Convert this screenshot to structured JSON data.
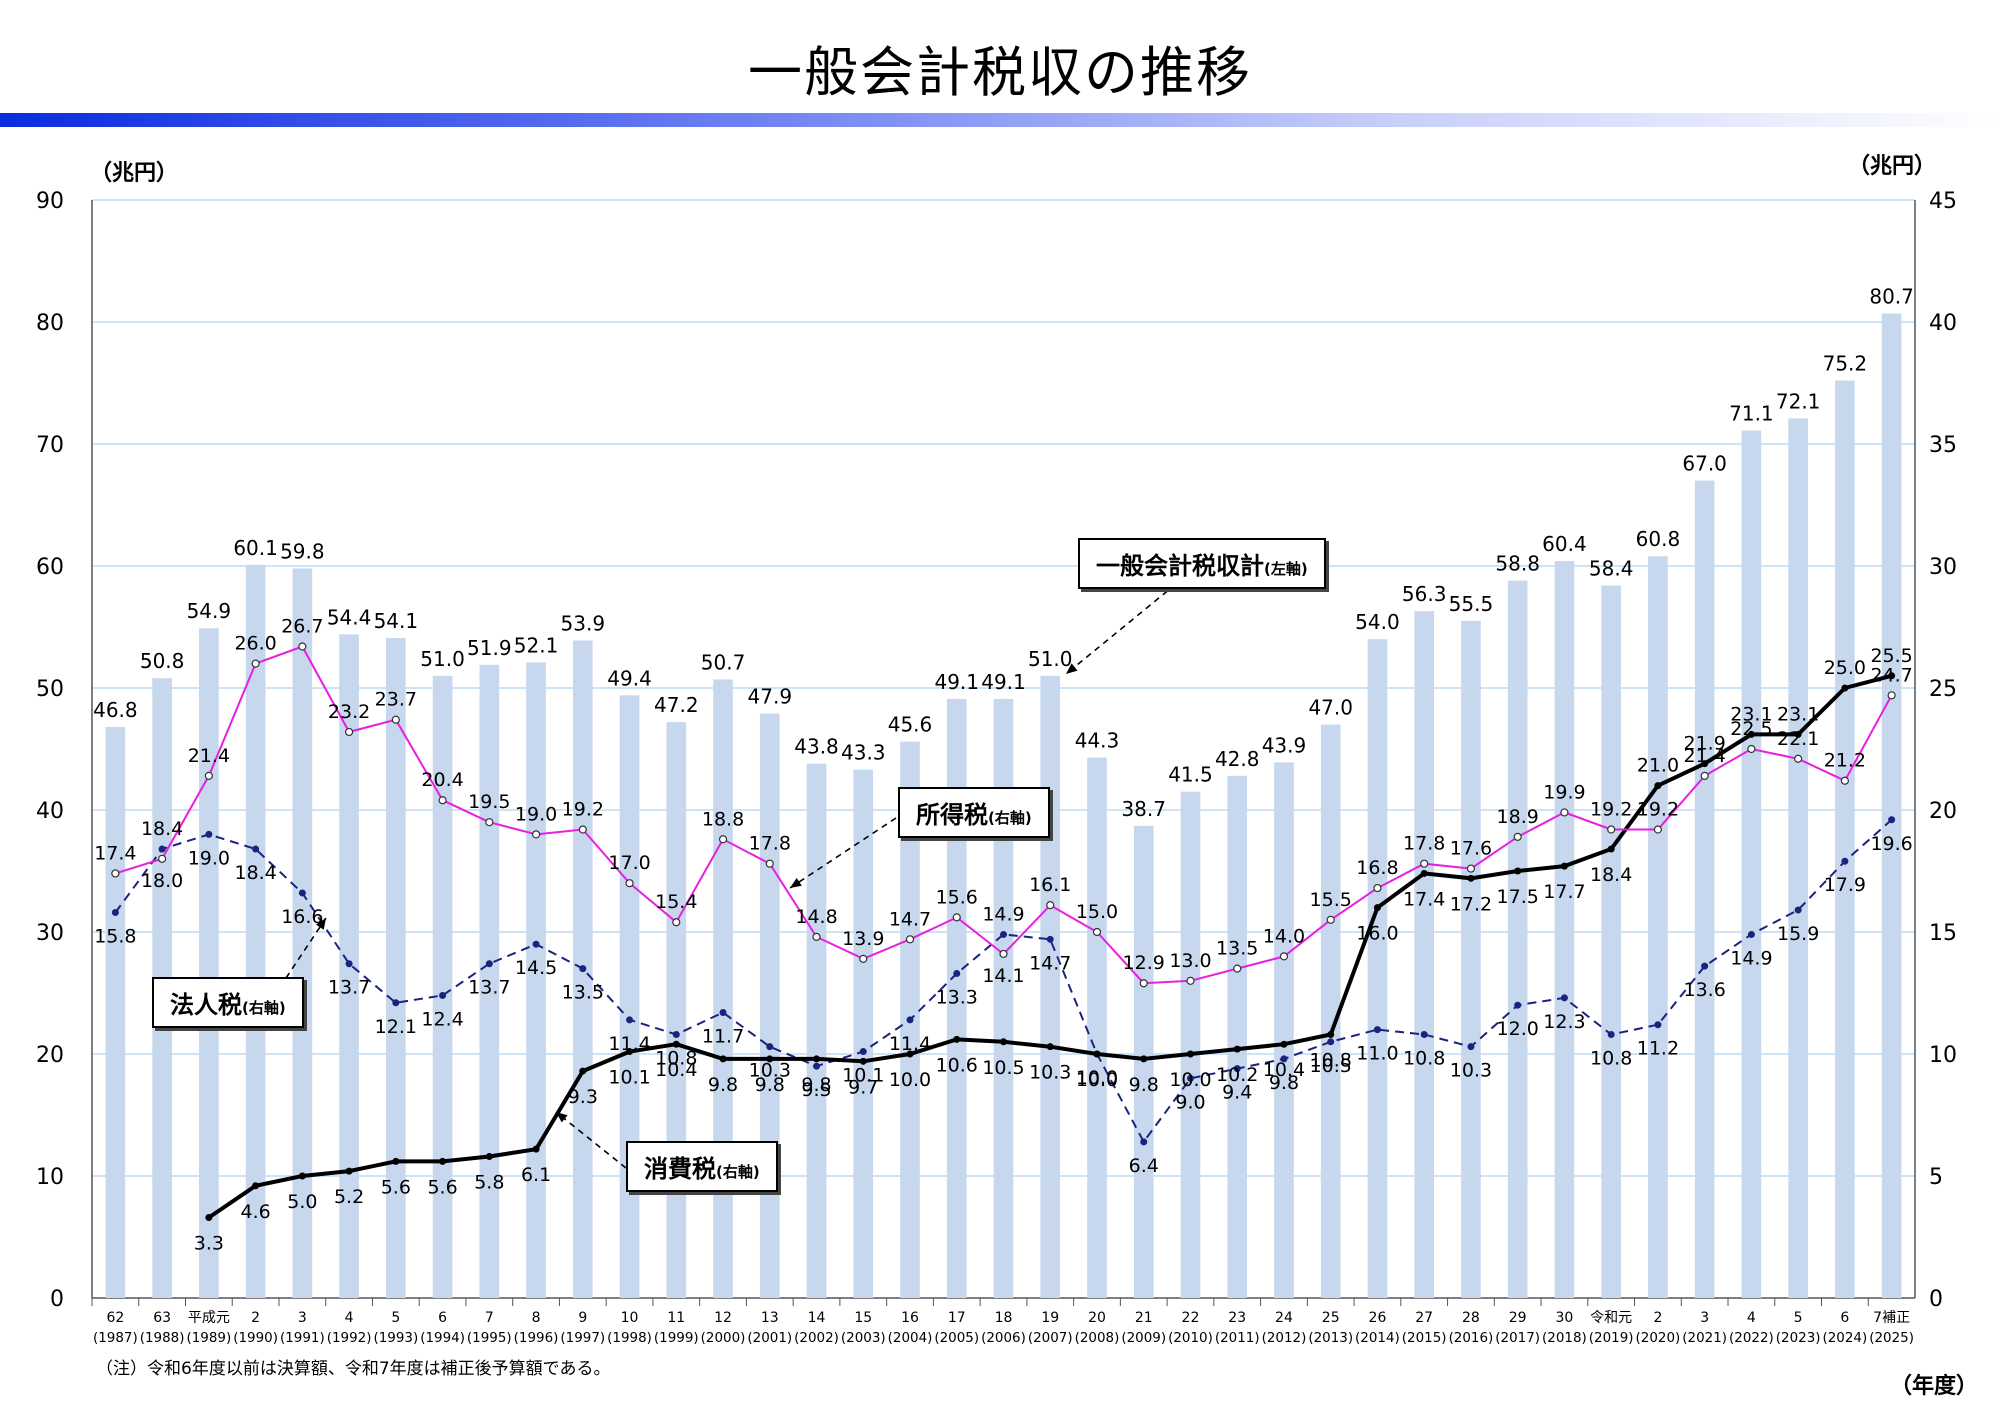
{
  "title": "一般会計税収の推移",
  "unit_left": "（兆円）",
  "unit_right": "（兆円）",
  "fiscal_year_label": "（年度）",
  "note": "（注）令和6年度以前は決算額、令和7年度は補正後予算額である。",
  "legend": {
    "total": {
      "name": "一般会計税収計",
      "axis": "(左軸)"
    },
    "income": {
      "name": "所得税",
      "axis": "(右軸)"
    },
    "corporate": {
      "name": "法人税",
      "axis": "(右軸)"
    },
    "consumption": {
      "name": "消費税",
      "axis": "(右軸)"
    }
  },
  "colors": {
    "bar": "#c6d7ee",
    "income": "#e81ee0",
    "corporate": "#1a237e",
    "consumption": "#000000",
    "grid": "#bcdcf2"
  },
  "chart_data": {
    "type": "bar",
    "categories": [
      [
        "62",
        "(1987)"
      ],
      [
        "63",
        "(1988)"
      ],
      [
        "平成元",
        "(1989)"
      ],
      [
        "2",
        "(1990)"
      ],
      [
        "3",
        "(1991)"
      ],
      [
        "4",
        "(1992)"
      ],
      [
        "5",
        "(1993)"
      ],
      [
        "6",
        "(1994)"
      ],
      [
        "7",
        "(1995)"
      ],
      [
        "8",
        "(1996)"
      ],
      [
        "9",
        "(1997)"
      ],
      [
        "10",
        "(1998)"
      ],
      [
        "11",
        "(1999)"
      ],
      [
        "12",
        "(2000)"
      ],
      [
        "13",
        "(2001)"
      ],
      [
        "14",
        "(2002)"
      ],
      [
        "15",
        "(2003)"
      ],
      [
        "16",
        "(2004)"
      ],
      [
        "17",
        "(2005)"
      ],
      [
        "18",
        "(2006)"
      ],
      [
        "19",
        "(2007)"
      ],
      [
        "20",
        "(2008)"
      ],
      [
        "21",
        "(2009)"
      ],
      [
        "22",
        "(2010)"
      ],
      [
        "23",
        "(2011)"
      ],
      [
        "24",
        "(2012)"
      ],
      [
        "25",
        "(2013)"
      ],
      [
        "26",
        "(2014)"
      ],
      [
        "27",
        "(2015)"
      ],
      [
        "28",
        "(2016)"
      ],
      [
        "29",
        "(2017)"
      ],
      [
        "30",
        "(2018)"
      ],
      [
        "令和元",
        "(2019)"
      ],
      [
        "2",
        "(2020)"
      ],
      [
        "3",
        "(2021)"
      ],
      [
        "4",
        "(2022)"
      ],
      [
        "5",
        "(2023)"
      ],
      [
        "6",
        "(2024)"
      ],
      [
        "7補正",
        "(2025)"
      ]
    ],
    "left_axis": {
      "min": 0,
      "max": 90,
      "ticks": [
        0,
        10,
        20,
        30,
        40,
        50,
        60,
        70,
        80,
        90
      ]
    },
    "right_axis": {
      "min": 0,
      "max": 45,
      "ticks": [
        0,
        5,
        10,
        15,
        20,
        25,
        30,
        35,
        40,
        45
      ]
    },
    "series": [
      {
        "name": "一般会計税収計",
        "axis": "left",
        "type": "bar",
        "values": [
          46.8,
          50.8,
          54.9,
          60.1,
          59.8,
          54.4,
          54.1,
          51.0,
          51.9,
          52.1,
          53.9,
          49.4,
          47.2,
          50.7,
          47.9,
          43.8,
          43.3,
          45.6,
          49.1,
          49.1,
          51.0,
          44.3,
          38.7,
          41.5,
          42.8,
          43.9,
          47.0,
          54.0,
          56.3,
          55.5,
          58.8,
          60.4,
          58.4,
          60.8,
          67.0,
          71.1,
          72.1,
          75.2,
          80.7
        ]
      },
      {
        "name": "所得税",
        "axis": "right",
        "type": "line",
        "values": [
          17.4,
          18.0,
          21.4,
          26.0,
          26.7,
          23.2,
          23.7,
          20.4,
          19.5,
          19.0,
          19.2,
          17.0,
          15.4,
          18.8,
          17.8,
          14.8,
          13.9,
          14.7,
          15.6,
          14.1,
          16.1,
          15.0,
          12.9,
          13.0,
          13.5,
          14.0,
          15.5,
          16.8,
          17.8,
          17.6,
          18.9,
          19.9,
          19.2,
          19.2,
          21.4,
          22.5,
          22.1,
          21.2,
          24.7
        ]
      },
      {
        "name": "法人税",
        "axis": "right",
        "type": "line",
        "values": [
          15.8,
          18.4,
          19.0,
          18.4,
          16.6,
          13.7,
          12.1,
          12.4,
          13.7,
          14.5,
          13.5,
          11.4,
          10.8,
          11.7,
          10.3,
          9.5,
          10.1,
          11.4,
          13.3,
          14.9,
          14.7,
          10.0,
          6.4,
          9.0,
          9.4,
          9.8,
          10.5,
          11.0,
          10.8,
          10.3,
          12.0,
          12.3,
          10.8,
          11.2,
          13.6,
          14.9,
          15.9,
          17.9,
          19.6
        ]
      },
      {
        "name": "消費税",
        "axis": "right",
        "type": "line",
        "values": [
          null,
          null,
          3.3,
          4.6,
          5.0,
          5.2,
          5.6,
          5.6,
          5.8,
          6.1,
          9.3,
          10.1,
          10.4,
          9.8,
          9.8,
          9.8,
          9.7,
          10.0,
          10.6,
          10.5,
          10.3,
          10.0,
          9.8,
          10.0,
          10.2,
          10.4,
          10.8,
          16.0,
          17.4,
          17.2,
          17.5,
          17.7,
          18.4,
          21.0,
          21.9,
          23.1,
          23.1,
          25.0,
          25.5
        ]
      }
    ]
  }
}
